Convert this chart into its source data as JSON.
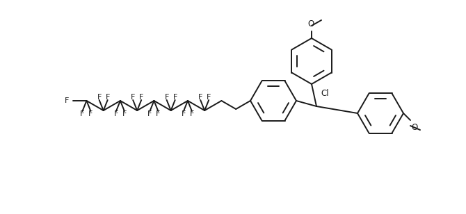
{
  "bg_color": "#ffffff",
  "line_color": "#1a1a1a",
  "line_width": 1.4,
  "font_size": 8.5,
  "fig_width": 6.7,
  "fig_height": 3.08,
  "dpi": 100,
  "xlim": [
    0,
    670
  ],
  "ylim": [
    0,
    308
  ]
}
